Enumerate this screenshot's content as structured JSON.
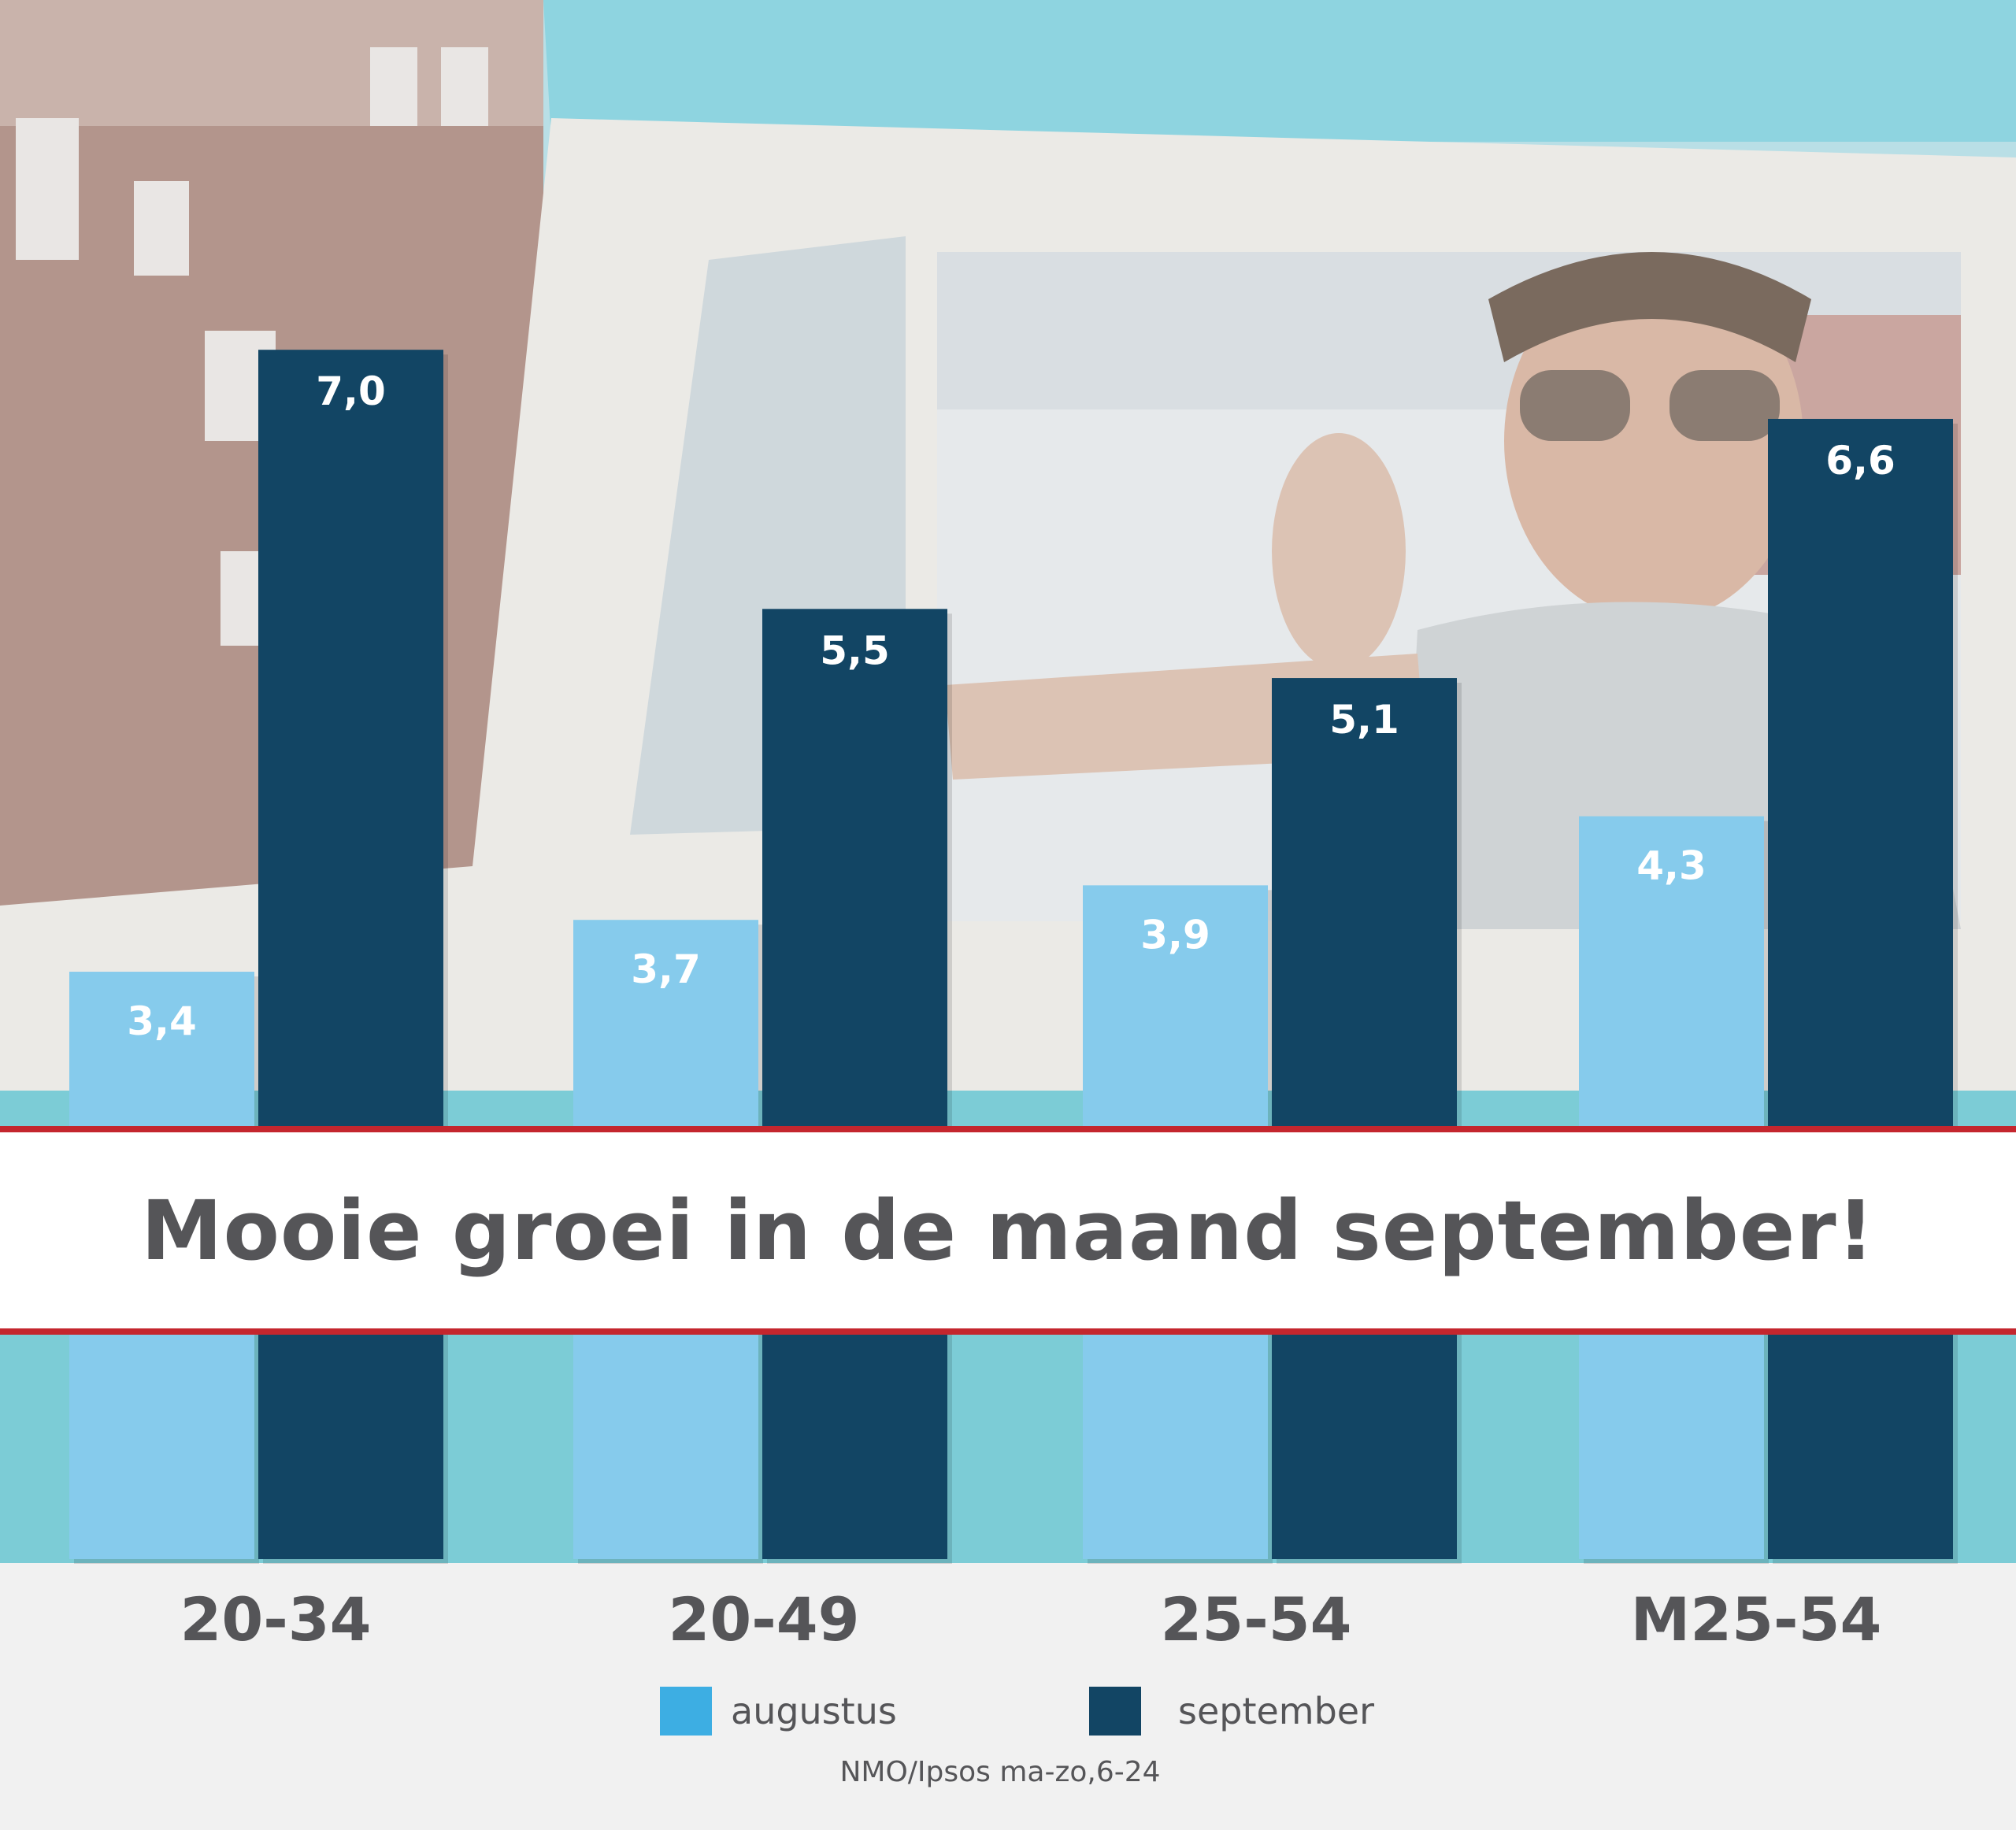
{
  "banner": {
    "title": "Mooie groei in de maand september!"
  },
  "source": "NMO/Ipsos ma-zo,6-24",
  "legend": {
    "items": [
      {
        "label": "augustus",
        "color": "#3daee3"
      },
      {
        "label": "september",
        "color": "#124564"
      }
    ]
  },
  "colors": {
    "augustus_bar": "#86cbec",
    "september_bar": "#124564",
    "banner_rule": "#c4262e",
    "text": "#555558"
  },
  "chart_data": {
    "type": "bar",
    "categories": [
      "20-34",
      "20-49",
      "25-54",
      "M25-54"
    ],
    "series": [
      {
        "name": "augustus",
        "values": [
          3.4,
          3.7,
          3.9,
          4.3
        ],
        "labels": [
          "3,4",
          "3,7",
          "3,9",
          "4,3"
        ]
      },
      {
        "name": "september",
        "values": [
          7.0,
          5.5,
          5.1,
          6.6
        ],
        "labels": [
          "7,0",
          "5,5",
          "5,1",
          "6,6"
        ]
      }
    ],
    "title": "Mooie groei in de maand september!",
    "xlabel": "",
    "ylabel": "",
    "grid": false,
    "legend_position": "bottom"
  }
}
